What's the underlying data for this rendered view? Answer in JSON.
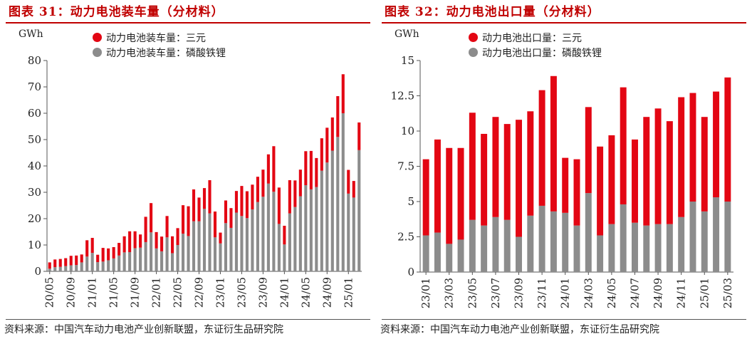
{
  "charts": [
    {
      "title": "图表 31：动力电池装车量（分材料）",
      "source": "资料来源：中国汽车动力电池产业创新联盟，东证衍生品研究院",
      "unit": "GWh",
      "colors": {
        "ternary": "#e30613",
        "lfp": "#8c8c8c",
        "title": "#c00000"
      },
      "legend": [
        {
          "label": "动力电池装车量：三元",
          "color": "#e30613",
          "dot": "dot-icon"
        },
        {
          "label": "动力电池装车量：磷酸铁锂",
          "color": "#8c8c8c",
          "dot": "dot-icon"
        }
      ]
    },
    {
      "title": "图表 32：动力电池出口量（分材料）",
      "source": "资料来源：中国汽车动力电池产业创新联盟，东证衍生品研究院",
      "unit": "GWh",
      "colors": {
        "ternary": "#e30613",
        "lfp": "#8c8c8c",
        "title": "#c00000"
      },
      "legend": [
        {
          "label": "动力电池出口量：三元",
          "color": "#e30613",
          "dot": "dot-icon"
        },
        {
          "label": "动力电池出口量：磷酸铁锂",
          "color": "#8c8c8c",
          "dot": "dot-icon"
        }
      ]
    }
  ],
  "chart_data": [
    {
      "type": "bar",
      "stacked": true,
      "title": "图表 31：动力电池装车量（分材料）",
      "ylabel": "GWh",
      "ylim": [
        0,
        80
      ],
      "yticks": [
        0,
        10,
        20,
        30,
        40,
        50,
        60,
        70,
        80
      ],
      "categories": [
        "20/05",
        "20/06",
        "20/07",
        "20/08",
        "20/09",
        "20/10",
        "20/11",
        "20/12",
        "21/01",
        "21/02",
        "21/03",
        "21/04",
        "21/05",
        "21/06",
        "21/07",
        "21/08",
        "21/09",
        "21/10",
        "21/11",
        "21/12",
        "22/01",
        "22/02",
        "22/03",
        "22/04",
        "22/05",
        "22/06",
        "22/07",
        "22/08",
        "22/09",
        "22/10",
        "22/11",
        "22/12",
        "23/01",
        "23/02",
        "23/03",
        "23/04",
        "23/05",
        "23/06",
        "23/07",
        "23/08",
        "23/09",
        "23/10",
        "23/11",
        "23/12",
        "24/01",
        "24/02",
        "24/03",
        "24/04",
        "24/05",
        "24/06",
        "24/07",
        "24/08",
        "24/09",
        "24/10",
        "24/11",
        "24/12",
        "25/01",
        "25/02",
        "25/03"
      ],
      "tick_labels": [
        "20/05",
        "20/09",
        "21/01",
        "21/05",
        "21/09",
        "22/01",
        "22/05",
        "22/09",
        "23/01",
        "23/05",
        "23/09",
        "24/01",
        "24/05",
        "24/09",
        "25/01"
      ],
      "series": [
        {
          "name": "动力电池装车量：磷酸铁锂",
          "color": "#8c8c8c",
          "values": [
            1.0,
            1.6,
            1.7,
            2.0,
            2.3,
            2.4,
            3.4,
            5.6,
            7.0,
            3.5,
            3.7,
            4.2,
            4.9,
            6.0,
            7.2,
            7.3,
            8.8,
            9.0,
            11.1,
            14.8,
            8.7,
            7.6,
            12.9,
            6.9,
            10.0,
            14.3,
            13.4,
            19.0,
            19.0,
            23.7,
            22.0,
            12.9,
            10.6,
            18.3,
            16.5,
            22.3,
            21.0,
            20.2,
            23.5,
            26.3,
            28.3,
            33.3,
            30.2,
            18.0,
            10.2,
            22.0,
            24.4,
            28.5,
            32.7,
            31.1,
            32.0,
            38.2,
            41.3,
            45.8,
            51.0,
            60.0,
            29.5,
            28.0,
            46.0
          ]
        },
        {
          "name": "动力电池装车量：三元",
          "color": "#e30613",
          "values": [
            2.4,
            2.9,
            3.0,
            3.0,
            3.6,
            3.6,
            3.0,
            6.2,
            5.7,
            2.8,
            5.2,
            4.5,
            4.3,
            4.8,
            6.1,
            7.9,
            6.4,
            5.0,
            9.6,
            11.1,
            6.2,
            5.6,
            8.1,
            6.4,
            6.4,
            10.8,
            11.3,
            12.1,
            9.0,
            7.9,
            12.6,
            9.8,
            4.1,
            8.6,
            7.5,
            8.2,
            11.4,
            10.2,
            9.4,
            9.6,
            10.3,
            11.1,
            17.3,
            13.8,
            7.1,
            12.6,
            10.1,
            10.1,
            12.9,
            14.6,
            11.0,
            12.3,
            13.2,
            12.6,
            15.5,
            14.8,
            9.0,
            6.3,
            10.5
          ]
        }
      ]
    },
    {
      "type": "bar",
      "stacked": true,
      "title": "图表 32：动力电池出口量（分材料）",
      "ylabel": "GWh",
      "ylim": [
        0,
        15
      ],
      "yticks": [
        0,
        2.5,
        5,
        7.5,
        10,
        12.5,
        15
      ],
      "ytick_labels": [
        "0",
        "2.5",
        "5",
        "7.5",
        "10",
        "12.5",
        "15"
      ],
      "categories": [
        "23/01",
        "23/02",
        "23/03",
        "23/04",
        "23/05",
        "23/06",
        "23/07",
        "23/08",
        "23/09",
        "23/10",
        "23/11",
        "23/12",
        "24/01",
        "24/02",
        "24/03",
        "24/04",
        "24/05",
        "24/06",
        "24/07",
        "24/08",
        "24/09",
        "24/10",
        "24/11",
        "24/12",
        "25/01",
        "25/02",
        "25/03"
      ],
      "tick_labels": [
        "23/01",
        "23/03",
        "23/05",
        "23/07",
        "23/09",
        "23/11",
        "24/01",
        "24/03",
        "24/05",
        "24/07",
        "24/09",
        "24/11",
        "25/01",
        "25/03"
      ],
      "series": [
        {
          "name": "动力电池出口量：磷酸铁锂",
          "color": "#8c8c8c",
          "values": [
            2.6,
            2.8,
            2.0,
            2.3,
            3.7,
            3.3,
            3.9,
            3.7,
            2.5,
            4.0,
            4.7,
            4.3,
            4.2,
            3.3,
            5.6,
            2.6,
            3.4,
            4.8,
            3.5,
            3.3,
            3.4,
            3.4,
            3.9,
            5.0,
            4.3,
            5.3,
            5.0
          ]
        },
        {
          "name": "动力电池出口量：三元",
          "color": "#e30613",
          "values": [
            5.4,
            6.6,
            6.8,
            6.5,
            7.6,
            6.5,
            7.1,
            6.8,
            8.3,
            7.4,
            8.2,
            9.6,
            3.9,
            4.7,
            6.1,
            6.3,
            6.3,
            8.3,
            5.9,
            7.7,
            8.2,
            7.3,
            8.5,
            7.7,
            6.7,
            7.5,
            8.8
          ]
        }
      ]
    }
  ]
}
